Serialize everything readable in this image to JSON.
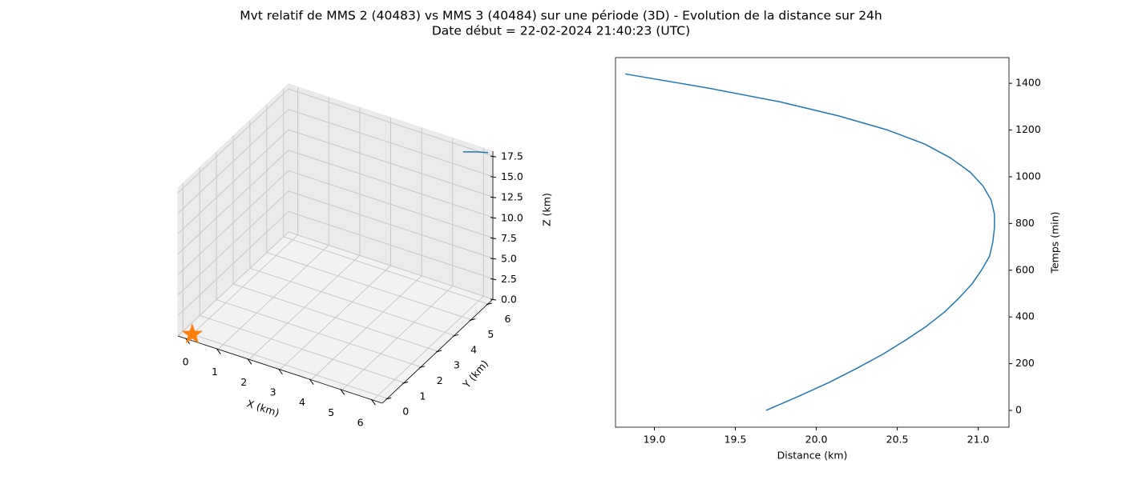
{
  "title": "Mvt relatif de MMS 2 (40483) vs MMS 3 (40484) sur une période (3D) - Evolution de la distance sur 24h",
  "subtitle": "Date début = 22-02-2024 21:40:23 (UTC)",
  "chart_data": [
    {
      "type": "line3d",
      "xlabel": "X (km)",
      "ylabel": "Y (km)",
      "zlabel": "Z (km)",
      "xlim": [
        -0.3,
        6.3
      ],
      "ylim": [
        -0.3,
        6.3
      ],
      "zlim": [
        0,
        18.1
      ],
      "xticks": [
        0,
        1,
        2,
        3,
        4,
        5,
        6
      ],
      "yticks": [
        0,
        1,
        2,
        3,
        4,
        5,
        6
      ],
      "zticks": [
        {
          "value": 0,
          "label": "0.0"
        },
        2.5,
        {
          "value": 5,
          "label": "5.0"
        },
        7.5,
        {
          "value": 10,
          "label": "10.0"
        },
        12.5,
        {
          "value": 15,
          "label": "15.0"
        },
        17.5
      ],
      "grid": true,
      "series": [
        {
          "color": "#1f77b4",
          "x": [
            5.5,
            5.9,
            6.2
          ],
          "y": [
            6.0,
            6.1,
            6.2
          ],
          "z": [
            17.6,
            17.9,
            18.0
          ]
        }
      ],
      "markers": [
        {
          "color": "#ff7f0e",
          "marker": "star",
          "x": [
            0
          ],
          "y": [
            0
          ],
          "z": [
            0
          ]
        }
      ]
    },
    {
      "type": "line",
      "xlabel": "Distance (km)",
      "ylabel": "Temps (min)",
      "xlim": [
        18.76,
        21.19
      ],
      "ylim": [
        -72,
        1510
      ],
      "xticks": [
        {
          "value": 19,
          "label": "19.0"
        },
        19.5,
        {
          "value": 20,
          "label": "20.0"
        },
        20.5,
        {
          "value": 21,
          "label": "21.0"
        }
      ],
      "yticks": [
        0,
        200,
        400,
        600,
        800,
        1000,
        1200,
        1400
      ],
      "yaxis_side": "right",
      "series": [
        {
          "color": "#1f77b4",
          "x": [
            19.69,
            19.89,
            20.08,
            20.25,
            20.41,
            20.55,
            20.68,
            20.79,
            20.88,
            20.96,
            21.02,
            21.07,
            21.09,
            21.1,
            21.1,
            21.08,
            21.03,
            20.95,
            20.83,
            20.67,
            20.44,
            20.14,
            19.78,
            19.33,
            18.82
          ],
          "y": [
            0,
            60,
            120,
            180,
            240,
            300,
            360,
            420,
            480,
            540,
            600,
            660,
            720,
            780,
            840,
            900,
            960,
            1020,
            1080,
            1140,
            1200,
            1260,
            1320,
            1380,
            1440
          ]
        }
      ]
    }
  ]
}
